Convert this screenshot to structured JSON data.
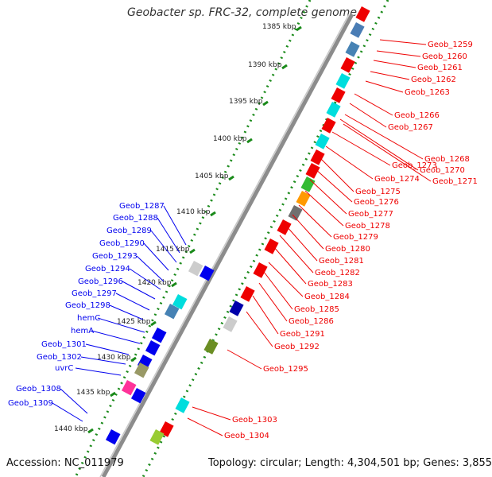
{
  "title": "Geobacter sp. FRC-32, complete genome",
  "accession": "Accession: NC_011979",
  "topology": "Topology: circular; Length: 4,304,501 bp; Genes: 3,855",
  "colors": {
    "forward": "#0000ee",
    "reverse": "#ee0000",
    "backbone": "#808080",
    "scale": "#1a8a1a"
  },
  "scale_ticks": [
    "1385 kbp",
    "1390 kbp",
    "1395 kbp",
    "1400 kbp",
    "1405 kbp",
    "1410 kbp",
    "1415 kbp",
    "1420 kbp",
    "1425 kbp",
    "1430 kbp",
    "1435 kbp",
    "1440 kbp"
  ],
  "forward_labels": [
    "Geob_1287",
    "Geob_1288",
    "Geob_1289",
    "Geob_1290",
    "Geob_1293",
    "Geob_1294",
    "Geob_1296",
    "Geob_1297",
    "Geob_1298",
    "hemC",
    "hemA",
    "Geob_1301",
    "Geob_1302",
    "uvrC",
    "Geob_1308",
    "Geob_1309"
  ],
  "reverse_labels": [
    "Geob_1259",
    "Geob_1260",
    "Geob_1261",
    "Geob_1262",
    "Geob_1263",
    "Geob_1266",
    "Geob_1267",
    "Geob_1268",
    "Geob_1270",
    "Geob_1271",
    "Geob_1273",
    "Geob_1274",
    "Geob_1275",
    "Geob_1276",
    "Geob_1277",
    "Geob_1278",
    "Geob_1279",
    "Geob_1280",
    "Geob_1281",
    "Geob_1282",
    "Geob_1283",
    "Geob_1284",
    "Geob_1285",
    "Geob_1286",
    "Geob_1291",
    "Geob_1292",
    "Geob_1295",
    "Geob_1303",
    "Geob_1304"
  ]
}
